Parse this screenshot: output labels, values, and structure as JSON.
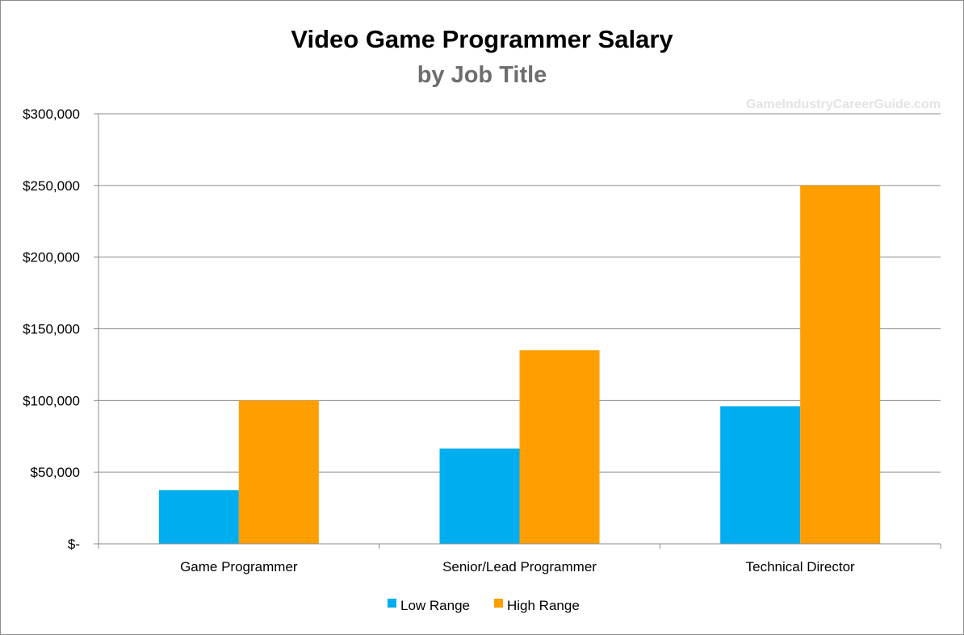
{
  "chart_data": {
    "type": "bar",
    "title": "Video Game Programmer Salary",
    "subtitle": "by Job Title",
    "watermark": "GameIndustryCareerGuide.com",
    "categories": [
      "Game Programmer",
      "Senior/Lead Programmer",
      "Technical Director"
    ],
    "series": [
      {
        "name": "Low Range",
        "color": "#00adef",
        "values": [
          37500,
          66500,
          96000
        ]
      },
      {
        "name": "High Range",
        "color": "#ff9e00",
        "values": [
          100000,
          135000,
          250000
        ]
      }
    ],
    "ylim": [
      0,
      300000
    ],
    "yticks": [
      0,
      50000,
      100000,
      150000,
      200000,
      250000,
      300000
    ],
    "ytick_labels": [
      "$-",
      "$50,000",
      "$100,000",
      "$150,000",
      "$200,000",
      "$250,000",
      "$300,000"
    ],
    "grid": true,
    "legend_position": "bottom"
  }
}
